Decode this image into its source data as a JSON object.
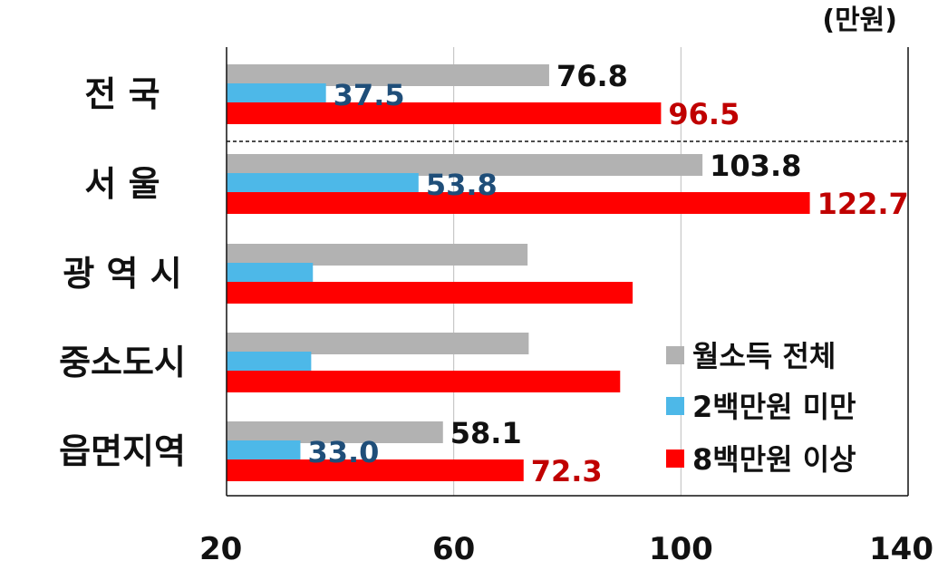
{
  "chart_data": {
    "type": "bar",
    "orientation": "horizontal",
    "unit": "(만원)",
    "categories": [
      "전    국",
      "서    울",
      "광 역 시",
      "중소도시",
      "읍면지역"
    ],
    "xlim": [
      20,
      140
    ],
    "xticks": [
      "20",
      "60",
      "100",
      "140"
    ],
    "grid": true,
    "legend_position": "bottom-right",
    "series": [
      {
        "name": "월소득 전체",
        "color": "#b2b2b2",
        "label_color": "#111111",
        "values": [
          76.8,
          103.8,
          73.0,
          73.2,
          58.1
        ],
        "labels": [
          "76.8",
          "103.8",
          "",
          "",
          "58.1"
        ]
      },
      {
        "name": "2백만원 미만",
        "color": "#4db8e8",
        "label_color": "#1f4e79",
        "values": [
          37.5,
          53.8,
          35.2,
          34.9,
          33.0
        ],
        "labels": [
          "37.5",
          "53.8",
          "",
          "",
          "33.0"
        ]
      },
      {
        "name": "8백만원 이상",
        "color": "#ff0000",
        "label_color": "#c00000",
        "values": [
          96.5,
          122.7,
          91.5,
          89.3,
          72.3
        ],
        "labels": [
          "96.5",
          "122.7",
          "",
          "",
          "72.3"
        ]
      }
    ]
  }
}
